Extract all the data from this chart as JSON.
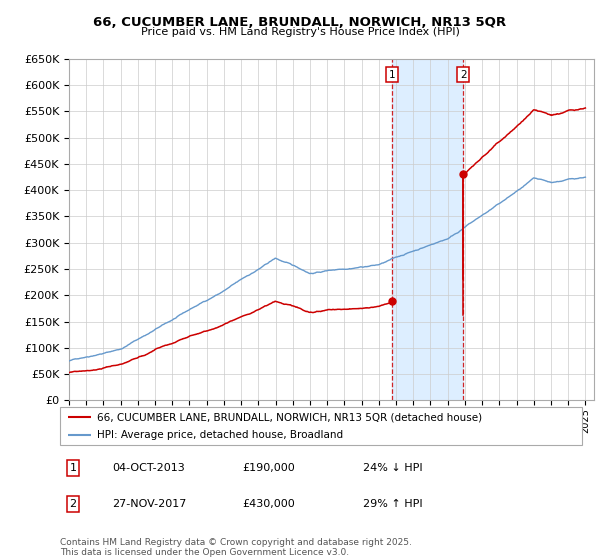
{
  "title": "66, CUCUMBER LANE, BRUNDALL, NORWICH, NR13 5QR",
  "subtitle": "Price paid vs. HM Land Registry's House Price Index (HPI)",
  "transaction1_date": "04-OCT-2013",
  "transaction1_price": 190000,
  "transaction2_date": "27-NOV-2017",
  "transaction2_price": 430000,
  "transaction1_hpi_pct": "24% ↓ HPI",
  "transaction2_hpi_pct": "29% ↑ HPI",
  "legend_line1": "66, CUCUMBER LANE, BRUNDALL, NORWICH, NR13 5QR (detached house)",
  "legend_line2": "HPI: Average price, detached house, Broadland",
  "footer": "Contains HM Land Registry data © Crown copyright and database right 2025.\nThis data is licensed under the Open Government Licence v3.0.",
  "ylim": [
    0,
    650000
  ],
  "yticks": [
    0,
    50000,
    100000,
    150000,
    200000,
    250000,
    300000,
    350000,
    400000,
    450000,
    500000,
    550000,
    600000,
    650000
  ],
  "red_color": "#cc0000",
  "blue_color": "#6699cc",
  "shade_color": "#ddeeff",
  "transaction1_x": 2013.75,
  "transaction2_x": 2017.9,
  "xlim_left": 1995,
  "xlim_right": 2025.5
}
